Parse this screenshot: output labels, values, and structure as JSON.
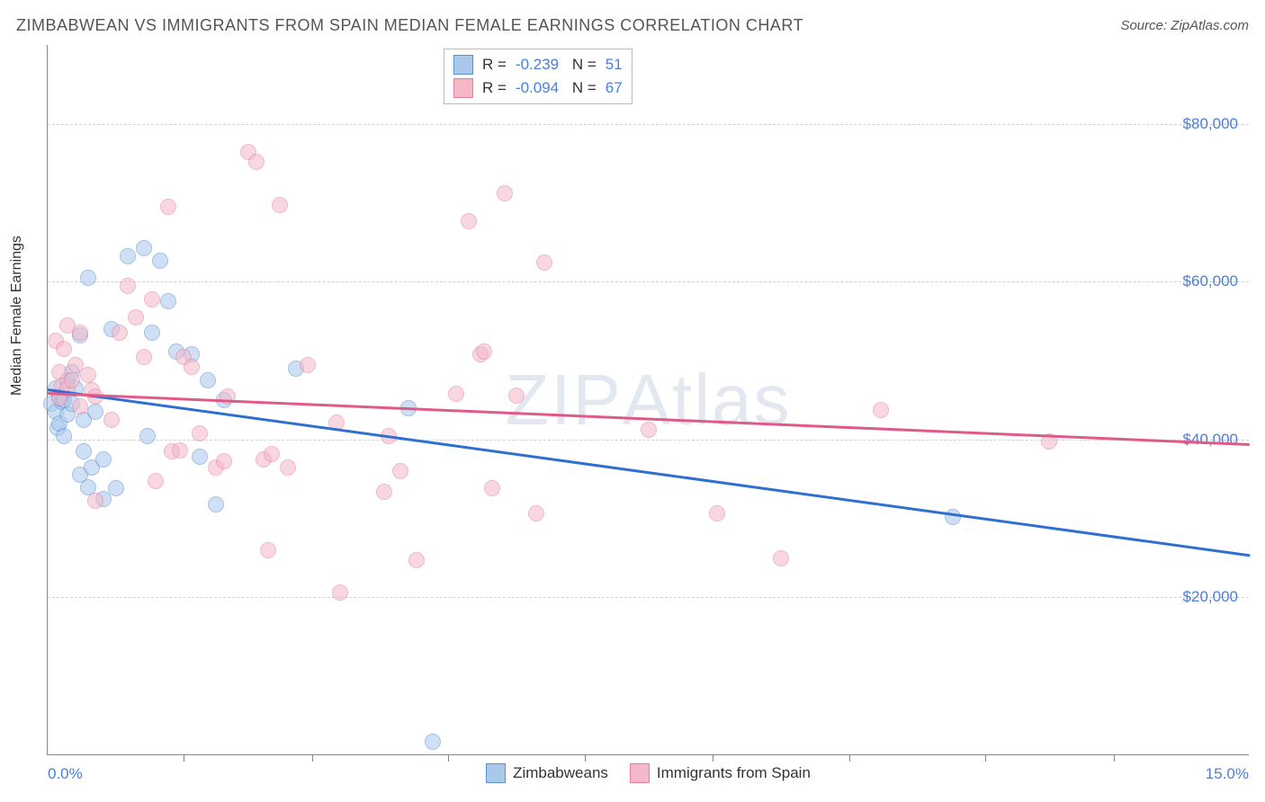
{
  "title": "ZIMBABWEAN VS IMMIGRANTS FROM SPAIN MEDIAN FEMALE EARNINGS CORRELATION CHART",
  "source": "Source: ZipAtlas.com",
  "watermark_a": "ZIP",
  "watermark_b": "Atlas",
  "chart": {
    "type": "scatter",
    "ylabel": "Median Female Earnings",
    "xlim": [
      0,
      15
    ],
    "ylim": [
      0,
      90000
    ],
    "x_label_min": "0.0%",
    "x_label_max": "15.0%",
    "y_ticks": [
      20000,
      40000,
      60000,
      80000
    ],
    "y_tick_labels": [
      "$20,000",
      "$40,000",
      "$60,000",
      "$80,000"
    ],
    "x_tick_positions": [
      1.7,
      3.3,
      5.0,
      6.7,
      8.3,
      10.0,
      11.7,
      13.3
    ],
    "grid_color": "#d0d0d0",
    "background_color": "#ffffff",
    "marker_size": 18,
    "series": [
      {
        "name": "Zimbabweans",
        "fill": "#a8c8ec",
        "stroke": "#5b8fd6",
        "line_color": "#2e6fd0",
        "R": "-0.239",
        "N": "51",
        "trend_start_y": 46500,
        "trend_end_y": 25500,
        "points": [
          [
            0.05,
            44500
          ],
          [
            0.1,
            46500
          ],
          [
            0.1,
            43500
          ],
          [
            0.12,
            41500
          ],
          [
            0.15,
            45500
          ],
          [
            0.15,
            42000
          ],
          [
            0.18,
            44800
          ],
          [
            0.2,
            40500
          ],
          [
            0.2,
            45000
          ],
          [
            0.25,
            47500
          ],
          [
            0.25,
            43200
          ],
          [
            0.3,
            48500
          ],
          [
            0.3,
            44500
          ],
          [
            0.35,
            46500
          ],
          [
            0.4,
            53200
          ],
          [
            0.4,
            35500
          ],
          [
            0.45,
            38500
          ],
          [
            0.45,
            42500
          ],
          [
            0.5,
            60500
          ],
          [
            0.5,
            34000
          ],
          [
            0.55,
            36500
          ],
          [
            0.6,
            43500
          ],
          [
            0.7,
            37500
          ],
          [
            0.7,
            32500
          ],
          [
            0.8,
            54000
          ],
          [
            0.85,
            33800
          ],
          [
            1.0,
            63200
          ],
          [
            1.2,
            64200
          ],
          [
            1.25,
            40500
          ],
          [
            1.3,
            53500
          ],
          [
            1.4,
            62700
          ],
          [
            1.5,
            57500
          ],
          [
            1.6,
            51200
          ],
          [
            1.8,
            50800
          ],
          [
            1.9,
            37800
          ],
          [
            2.0,
            47500
          ],
          [
            2.1,
            31800
          ],
          [
            2.2,
            45000
          ],
          [
            3.1,
            49000
          ],
          [
            4.5,
            44000
          ],
          [
            4.8,
            1700
          ],
          [
            11.3,
            30200
          ]
        ]
      },
      {
        "name": "Immigrants from Spain",
        "fill": "#f4b8c9",
        "stroke": "#e77fa0",
        "line_color": "#e05a88",
        "R": "-0.094",
        "N": "67",
        "trend_start_y": 46000,
        "trend_end_y": 39500,
        "points": [
          [
            0.1,
            52500
          ],
          [
            0.15,
            48500
          ],
          [
            0.15,
            45200
          ],
          [
            0.18,
            46800
          ],
          [
            0.2,
            51500
          ],
          [
            0.25,
            54500
          ],
          [
            0.25,
            46500
          ],
          [
            0.3,
            47500
          ],
          [
            0.35,
            49500
          ],
          [
            0.4,
            53500
          ],
          [
            0.4,
            44200
          ],
          [
            0.5,
            48200
          ],
          [
            0.55,
            46200
          ],
          [
            0.6,
            32200
          ],
          [
            0.6,
            45500
          ],
          [
            0.8,
            42500
          ],
          [
            0.9,
            53500
          ],
          [
            1.0,
            59500
          ],
          [
            1.1,
            55500
          ],
          [
            1.2,
            50500
          ],
          [
            1.3,
            57800
          ],
          [
            1.35,
            34800
          ],
          [
            1.5,
            69500
          ],
          [
            1.55,
            38500
          ],
          [
            1.65,
            38600
          ],
          [
            1.7,
            50500
          ],
          [
            1.8,
            49200
          ],
          [
            1.9,
            40800
          ],
          [
            2.1,
            36500
          ],
          [
            2.2,
            37200
          ],
          [
            2.25,
            45500
          ],
          [
            2.5,
            76500
          ],
          [
            2.6,
            75200
          ],
          [
            2.7,
            37500
          ],
          [
            2.75,
            26000
          ],
          [
            2.8,
            38200
          ],
          [
            2.9,
            69700
          ],
          [
            3.0,
            36500
          ],
          [
            3.25,
            49400
          ],
          [
            3.6,
            42200
          ],
          [
            3.65,
            20600
          ],
          [
            4.2,
            33400
          ],
          [
            4.25,
            40500
          ],
          [
            4.4,
            36000
          ],
          [
            4.6,
            24700
          ],
          [
            5.1,
            45800
          ],
          [
            5.25,
            67700
          ],
          [
            5.4,
            50800
          ],
          [
            5.45,
            51200
          ],
          [
            5.55,
            33800
          ],
          [
            5.7,
            71200
          ],
          [
            5.85,
            45600
          ],
          [
            6.1,
            30600
          ],
          [
            6.2,
            62400
          ],
          [
            7.5,
            41200
          ],
          [
            8.35,
            30600
          ],
          [
            9.15,
            25000
          ],
          [
            10.4,
            43700
          ],
          [
            12.5,
            39800
          ]
        ]
      }
    ]
  }
}
